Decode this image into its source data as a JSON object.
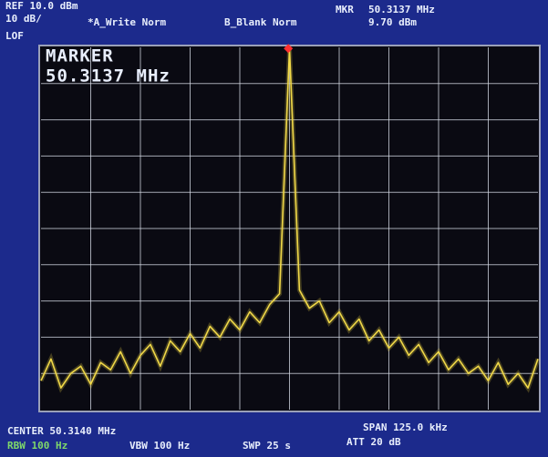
{
  "header": {
    "ref": "REF 10.0 dBm",
    "scale": "10 dB/",
    "trace_a": "*A_Write Norm",
    "trace_b": "B_Blank Norm",
    "mkr": "MKR",
    "mkr_freq": "50.3137 MHz",
    "mkr_level": "9.70 dBm",
    "lof": "LOF"
  },
  "footer": {
    "center": "CENTER 50.3140 MHz",
    "span": "SPAN 125.0 kHz",
    "rbw": "RBW 100 Hz",
    "vbw": "VBW 100 Hz",
    "swp": "SWP 25 s",
    "att": "ATT 20 dB"
  },
  "chart_data": {
    "type": "line",
    "x": [
      50.2515,
      50.254,
      50.2565,
      50.259,
      50.2615,
      50.264,
      50.2665,
      50.269,
      50.2715,
      50.274,
      50.2765,
      50.279,
      50.2815,
      50.284,
      50.2865,
      50.289,
      50.2915,
      50.294,
      50.2965,
      50.299,
      50.3015,
      50.304,
      50.3065,
      50.309,
      50.3115,
      50.314,
      50.3165,
      50.319,
      50.3215,
      50.324,
      50.3265,
      50.329,
      50.3315,
      50.334,
      50.3365,
      50.339,
      50.3415,
      50.344,
      50.3465,
      50.349,
      50.3515,
      50.354,
      50.3565,
      50.359,
      50.3615,
      50.364,
      50.3665,
      50.369,
      50.3715,
      50.374,
      50.3765
    ],
    "values": [
      -82,
      -76,
      -84,
      -80,
      -78,
      -83,
      -77,
      -79,
      -74,
      -80,
      -75,
      -72,
      -78,
      -71,
      -74,
      -69,
      -73,
      -67,
      -70,
      -65,
      -68,
      -63,
      -66,
      -61,
      -58,
      9.7,
      -57,
      -62,
      -60,
      -66,
      -63,
      -68,
      -65,
      -71,
      -68,
      -73,
      -70,
      -75,
      -72,
      -77,
      -74,
      -79,
      -76,
      -80,
      -78,
      -82,
      -77,
      -83,
      -80,
      -84,
      -76
    ],
    "color": "#f0d848",
    "xlim": [
      50.2515,
      50.3765
    ],
    "ylim": [
      -90,
      10
    ],
    "grid": true,
    "marker": {
      "label": "MARKER",
      "freq_label": "50.3137 MHz",
      "x": 50.3137,
      "y": 9.7
    }
  }
}
